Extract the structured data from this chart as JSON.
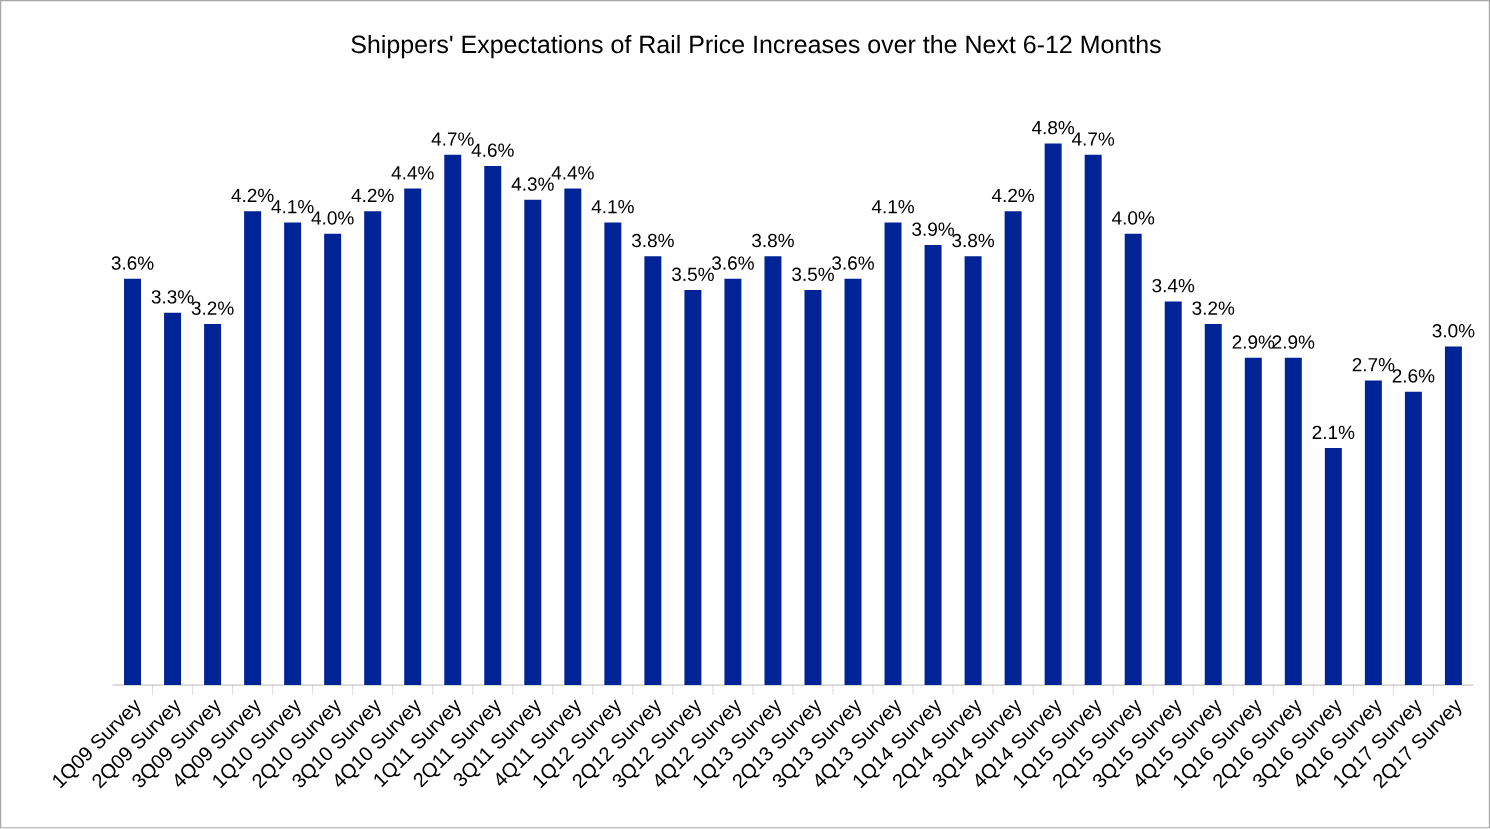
{
  "chart_data": {
    "type": "bar",
    "title": "Shippers' Expectations of Rail Price Increases over the Next 6-12 Months",
    "categories": [
      "1Q09 Survey",
      "2Q09 Survey",
      "3Q09 Survey",
      "4Q09 Survey",
      "1Q10 Survey",
      "2Q10 Survey",
      "3Q10 Survey",
      "4Q10 Survey",
      "1Q11 Survey",
      "2Q11 Survey",
      "3Q11 Survey",
      "4Q11 Survey",
      "1Q12 Survey",
      "2Q12 Survey",
      "3Q12 Survey",
      "4Q12 Survey",
      "1Q13 Survey",
      "2Q13 Survey",
      "3Q13 Survey",
      "4Q13 Survey",
      "1Q14 Survey",
      "2Q14 Survey",
      "3Q14 Survey",
      "4Q14 Survey",
      "1Q15 Survey",
      "2Q15 Survey",
      "3Q15 Survey",
      "4Q15 Survey",
      "1Q16 Survey",
      "2Q16 Survey",
      "3Q16 Survey",
      "4Q16 Survey",
      "1Q17 Survey",
      "2Q17 Survey"
    ],
    "values": [
      3.6,
      3.3,
      3.2,
      4.2,
      4.1,
      4.0,
      4.2,
      4.4,
      4.7,
      4.6,
      4.3,
      4.4,
      4.1,
      3.8,
      3.5,
      3.6,
      3.8,
      3.5,
      3.6,
      4.1,
      3.9,
      3.8,
      4.2,
      4.8,
      4.7,
      4.0,
      3.4,
      3.2,
      2.9,
      2.9,
      2.1,
      2.7,
      2.6,
      3.0
    ],
    "value_labels": [
      "3.6%",
      "3.3%",
      "3.2%",
      "4.2%",
      "4.1%",
      "4.0%",
      "4.2%",
      "4.4%",
      "4.7%",
      "4.6%",
      "4.3%",
      "4.4%",
      "4.1%",
      "3.8%",
      "3.5%",
      "3.6%",
      "3.8%",
      "3.5%",
      "3.6%",
      "4.1%",
      "3.9%",
      "3.8%",
      "4.2%",
      "4.8%",
      "4.7%",
      "4.0%",
      "3.4%",
      "3.2%",
      "2.9%",
      "2.9%",
      "2.1%",
      "2.7%",
      "2.6%",
      "3.0%"
    ],
    "color": "#002395"
  }
}
